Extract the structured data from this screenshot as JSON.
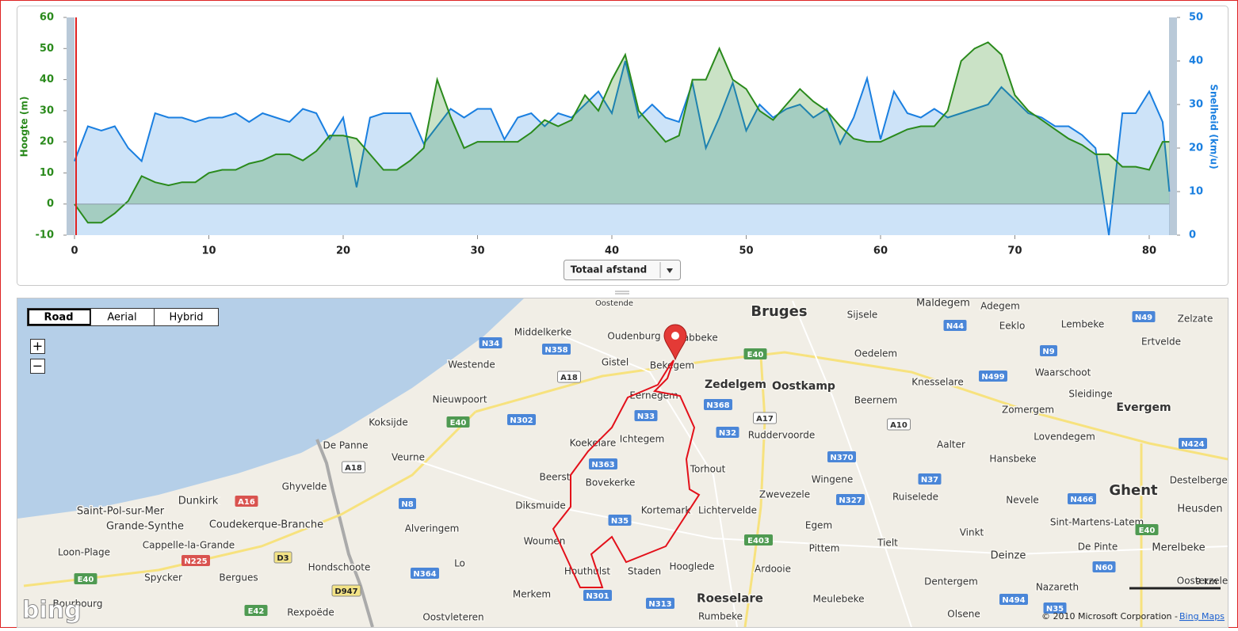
{
  "chart_data": {
    "type": "area",
    "ylabel": "Hoogte (m)",
    "y2label": "Snelheid (km/u)",
    "x": [
      0,
      1,
      2,
      3,
      4,
      5,
      6,
      7,
      8,
      9,
      10,
      11,
      12,
      13,
      14,
      15,
      16,
      17,
      18,
      19,
      20,
      21,
      22,
      23,
      24,
      25,
      26,
      27,
      28,
      29,
      30,
      31,
      32,
      33,
      34,
      35,
      36,
      37,
      38,
      39,
      40,
      41,
      42,
      43,
      44,
      45,
      46,
      47,
      48,
      49,
      50,
      51,
      52,
      53,
      54,
      55,
      56,
      57,
      58,
      59,
      60,
      61,
      62,
      63,
      64,
      65,
      66,
      67,
      68,
      69,
      70,
      71,
      72,
      73,
      74,
      75,
      76,
      77,
      78,
      79,
      80,
      81,
      81.5
    ],
    "series": [
      {
        "color": "#2a8a1c",
        "values": [
          0,
          -6,
          -6,
          -3,
          1,
          9,
          7,
          6,
          7,
          7,
          10,
          11,
          11,
          13,
          14,
          16,
          16,
          14,
          17,
          22,
          22,
          21,
          16,
          11,
          11,
          14,
          18,
          40,
          28,
          18,
          20,
          20,
          20,
          20,
          23,
          27,
          25,
          27,
          35,
          30,
          40,
          48,
          30,
          25,
          20,
          22,
          40,
          40,
          50,
          40,
          37,
          30,
          27,
          32,
          37,
          33,
          30,
          25,
          21,
          20,
          20,
          22,
          24,
          25,
          25,
          30,
          46,
          50,
          52,
          48,
          35,
          30,
          27,
          24,
          21,
          19,
          16,
          16,
          12,
          12,
          11,
          20,
          20
        ]
      },
      {
        "color": "#1a7fe0",
        "axis": "y2",
        "values": [
          17,
          25,
          24,
          25,
          20,
          17,
          28,
          27,
          27,
          26,
          27,
          27,
          28,
          26,
          28,
          27,
          26,
          29,
          28,
          22,
          27,
          11,
          27,
          28,
          28,
          28,
          21,
          25,
          29,
          27,
          29,
          29,
          22,
          27,
          28,
          25,
          28,
          27,
          30,
          33,
          28,
          40,
          27,
          30,
          27,
          26,
          35,
          20,
          27,
          35,
          24,
          30,
          27,
          29,
          30,
          27,
          29,
          21,
          27,
          36,
          22,
          33,
          28,
          27,
          29,
          27,
          28,
          29,
          30,
          34,
          31,
          28,
          27,
          25,
          25,
          23,
          20,
          0,
          28,
          28,
          33,
          26,
          10
        ]
      }
    ],
    "xlim": [
      0,
      81.5
    ],
    "xticks": [
      0,
      10,
      20,
      30,
      40,
      50,
      60,
      70,
      80
    ],
    "ylim": [
      -10,
      60
    ],
    "yticks": [
      -10,
      0,
      10,
      20,
      30,
      40,
      50,
      60
    ],
    "y2lim": [
      0,
      50
    ],
    "y2ticks": [
      0,
      10,
      20,
      30,
      40,
      50
    ],
    "grid": false
  },
  "x_axis_selector": "Totaal afstand",
  "map": {
    "view_buttons": [
      "Road",
      "Aerial",
      "Hybrid"
    ],
    "zoom": [
      "+",
      "−"
    ],
    "places": [
      "Bruges",
      "Maldegem",
      "Adegem",
      "Sijsele",
      "Oostende",
      "Oudenburg",
      "Middelkerke",
      "Gistel",
      "Bekegem",
      "Jabbeke",
      "Zedelgem",
      "Oostkamp",
      "Oedelem",
      "Eeklo",
      "Lembeke",
      "Ertvelde",
      "Zelzate",
      "Waarschoot",
      "Knesselare",
      "Sleidinge",
      "Evergem",
      "Westende",
      "Nieuwpoort",
      "Eernegem",
      "Beernem",
      "Zomergem",
      "Koksijde",
      "Ichtegem",
      "Ruddervoorde",
      "Lovendegem",
      "Aalter",
      "De Panne",
      "Veurne",
      "Koekelare",
      "Wingene",
      "Hansbeke",
      "Torhout",
      "Beerst",
      "Ghyvelde",
      "Bovekerke",
      "Zwevezele",
      "Ruiselede",
      "Nevele",
      "Ghent",
      "Destelbergen",
      "Dunkirk",
      "Saint-Pol-sur-Mer",
      "Diksmuide",
      "Kortemark",
      "Lichtervelde",
      "Heusden",
      "Grande-Synthe",
      "Coudekerque-Branche",
      "Alveringem",
      "Egem",
      "Sint-Martens-Latem",
      "Vinkt",
      "Woumen",
      "Cappelle-la-Grande",
      "Pittem",
      "Tielt",
      "De Pinte",
      "Merelbeke",
      "Loon-Plage",
      "Deinze",
      "Lo",
      "Hondschoote",
      "Hooglede",
      "Ardooie",
      "Houthulst",
      "Staden",
      "Spycker",
      "Bergues",
      "Dentergem",
      "Nazareth",
      "Oosterzele",
      "Merkem",
      "Roeselare",
      "Meulebeke",
      "Bourbourg",
      "Rexpoëde",
      "Rumbeke",
      "Olsene",
      "Oostvleteren"
    ],
    "roads": [
      "N34",
      "N358",
      "E40",
      "N44",
      "N49",
      "A18",
      "N9",
      "N499",
      "N302",
      "N33",
      "N368",
      "A17",
      "A10",
      "N32",
      "E40",
      "N363",
      "N370",
      "N37",
      "N424",
      "A18",
      "N8",
      "A16",
      "N35",
      "N327",
      "N466",
      "E403",
      "E40",
      "N225",
      "D3",
      "N364",
      "N60",
      "D947",
      "N301",
      "E42",
      "N313",
      "N494",
      "N35",
      "E40"
    ],
    "scale": "9 km",
    "copyright": "© 2010 Microsoft Corporation - ",
    "copyright_link": "Bing Maps",
    "logo": "bing"
  }
}
